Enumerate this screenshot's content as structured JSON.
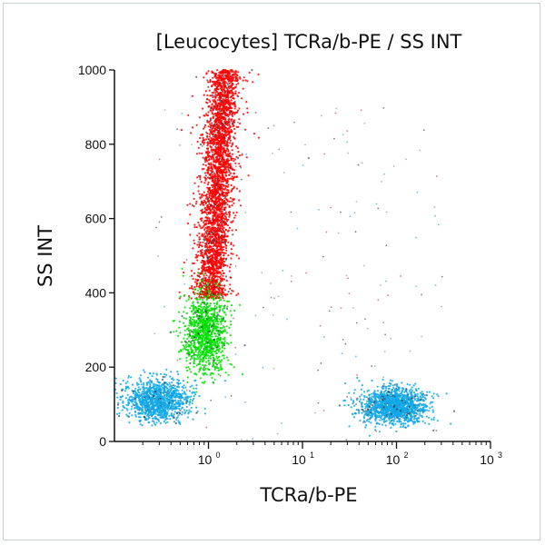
{
  "chart_data": {
    "type": "scatter",
    "title": "[Leucocytes] TCRa/b-PE / SS INT",
    "xlabel": "TCRa/b-PE",
    "ylabel": "SS INT",
    "xscale": "log",
    "xlim": [
      0.1,
      1000
    ],
    "ylim": [
      0,
      1000
    ],
    "xticks": [
      {
        "value": 1,
        "label": "10",
        "exp": "0"
      },
      {
        "value": 10,
        "label": "10",
        "exp": "1"
      },
      {
        "value": 100,
        "label": "10",
        "exp": "2"
      },
      {
        "value": 1000,
        "label": "10",
        "exp": "3"
      }
    ],
    "yticks": [
      0,
      200,
      400,
      600,
      800,
      1000
    ],
    "grid": false,
    "populations": [
      {
        "color": "#ff0000",
        "count": 3200,
        "x_log10_center": 0.02,
        "x_log10_slope_per_100": 0.025,
        "x_log10_sd": 0.08,
        "y_range": [
          385,
          1020
        ]
      },
      {
        "color": "#00e000",
        "count": 1100,
        "x_log10_center": -0.03,
        "x_log10_sd": 0.11,
        "y_center": 290,
        "y_sd": 55
      },
      {
        "color": "#10a8e8",
        "count": 1100,
        "x_log10_center": -0.55,
        "x_log10_sd": 0.17,
        "y_center": 110,
        "y_sd": 28
      },
      {
        "color": "#10a8e8",
        "count": 1400,
        "x_log10_center": 1.97,
        "x_log10_sd": 0.17,
        "y_center": 95,
        "y_sd": 24
      }
    ],
    "background_events": {
      "count": 180,
      "colors": [
        "#cc2030",
        "#60a060",
        "#2090c0",
        "#502020"
      ]
    }
  }
}
